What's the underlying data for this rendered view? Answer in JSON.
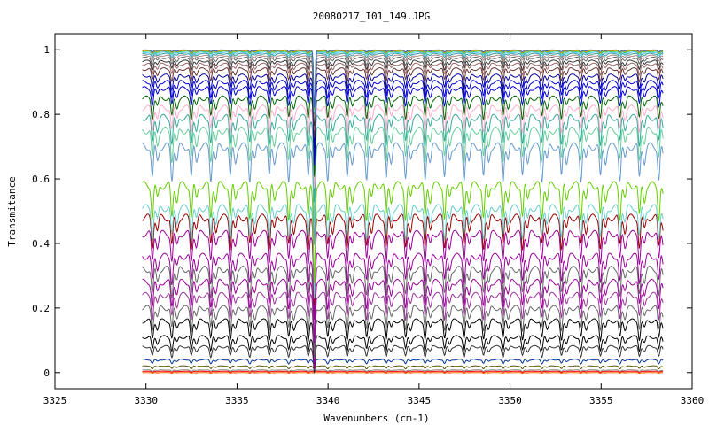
{
  "chart_data": {
    "type": "line",
    "title": "20080217_I01_149.JPG",
    "xlabel": "Wavenumbers (cm-1)",
    "ylabel": "Transmitance",
    "xlim": [
      3325,
      3360
    ],
    "ylim": [
      -0.05,
      1.05
    ],
    "x_ticks": [
      3325,
      3330,
      3335,
      3340,
      3345,
      3350,
      3355,
      3360
    ],
    "x_tick_labels": [
      "3325",
      "3330",
      "3335",
      "3340",
      "3345",
      "3350",
      "3355",
      "3360"
    ],
    "y_ticks": [
      0,
      0.2,
      0.4,
      0.6,
      0.8,
      1
    ],
    "y_tick_labels": [
      "0",
      "0.2",
      "0.4",
      "0.6",
      "0.8",
      "1"
    ],
    "x_range": [
      3329.8,
      3358.4
    ],
    "grid": false,
    "legend": "none",
    "line_period_cm1": 1.07,
    "line_start_cm1": 3330.35,
    "strong_line_cm1": 3339.25,
    "series": [
      {
        "level": 0.0,
        "depth": 0.002,
        "color": "#ff6600"
      },
      {
        "level": 0.004,
        "depth": 0.003,
        "color": "#ff0000"
      },
      {
        "level": 0.008,
        "depth": 0.004,
        "color": "#888888"
      },
      {
        "level": 0.02,
        "depth": 0.008,
        "color": "#555500"
      },
      {
        "level": 0.04,
        "depth": 0.012,
        "color": "#003399"
      },
      {
        "level": 0.08,
        "depth": 0.03,
        "color": "#333333"
      },
      {
        "level": 0.11,
        "depth": 0.04,
        "color": "#000000"
      },
      {
        "level": 0.16,
        "depth": 0.055,
        "color": "#000000"
      },
      {
        "level": 0.2,
        "depth": 0.065,
        "color": "#666666"
      },
      {
        "level": 0.24,
        "depth": 0.07,
        "color": "#993399"
      },
      {
        "level": 0.28,
        "depth": 0.075,
        "color": "#990099"
      },
      {
        "level": 0.32,
        "depth": 0.08,
        "color": "#666666"
      },
      {
        "level": 0.36,
        "depth": 0.08,
        "color": "#990099"
      },
      {
        "level": 0.43,
        "depth": 0.085,
        "color": "#990099"
      },
      {
        "level": 0.48,
        "depth": 0.09,
        "color": "#990000"
      },
      {
        "level": 0.51,
        "depth": 0.09,
        "color": "#66cccc"
      },
      {
        "level": 0.58,
        "depth": 0.1,
        "color": "#66cc00"
      },
      {
        "level": 0.7,
        "depth": 0.1,
        "color": "#6699cc"
      },
      {
        "level": 0.75,
        "depth": 0.09,
        "color": "#66cc99"
      },
      {
        "level": 0.79,
        "depth": 0.08,
        "color": "#33aa99"
      },
      {
        "level": 0.82,
        "depth": 0.07,
        "color": "#ffaacc"
      },
      {
        "level": 0.85,
        "depth": 0.06,
        "color": "#006600"
      },
      {
        "level": 0.88,
        "depth": 0.05,
        "color": "#0000cc"
      },
      {
        "level": 0.9,
        "depth": 0.045,
        "color": "#0000cc"
      },
      {
        "level": 0.92,
        "depth": 0.04,
        "color": "#000099"
      },
      {
        "level": 0.94,
        "depth": 0.035,
        "color": "#663333"
      },
      {
        "level": 0.955,
        "depth": 0.03,
        "color": "#996666"
      },
      {
        "level": 0.965,
        "depth": 0.025,
        "color": "#333333"
      },
      {
        "level": 0.975,
        "depth": 0.02,
        "color": "#666666"
      },
      {
        "level": 0.982,
        "depth": 0.015,
        "color": "#aa8888"
      },
      {
        "level": 0.988,
        "depth": 0.012,
        "color": "#339999"
      },
      {
        "level": 0.992,
        "depth": 0.01,
        "color": "#66ccff"
      },
      {
        "level": 0.995,
        "depth": 0.008,
        "color": "#33cc66"
      },
      {
        "level": 0.997,
        "depth": 0.006,
        "color": "#cc9900"
      },
      {
        "level": 0.999,
        "depth": 0.005,
        "color": "#3366cc"
      }
    ]
  }
}
